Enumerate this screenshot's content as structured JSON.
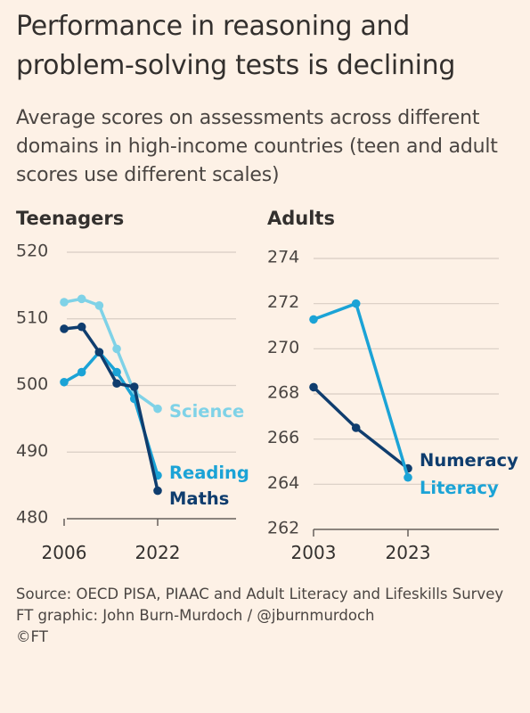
{
  "title": "Performance in reasoning and problem-solving tests is declining",
  "subtitle": "Average scores on assessments across different domains in high-income countries (teen and adult scores use different scales)",
  "source": "Source: OECD PISA, PIAAC and Adult Literacy and Lifeskills Survey",
  "credit": "FT graphic: John Burn-Murdoch / @jburnmurdoch",
  "copyright": "©FT",
  "colors": {
    "background": "#fdf1e6",
    "science": "#7fd2e7",
    "reading": "#1ba3d6",
    "maths": "#0f3d6e",
    "numeracy": "#0f3d6e",
    "literacy": "#1ba3d6",
    "grid": "#d8cdc4"
  },
  "chart_data": [
    {
      "type": "line",
      "title": "Teenagers",
      "ylim": [
        480,
        520
      ],
      "yticks": [
        "520",
        "510",
        "500",
        "490",
        "480"
      ],
      "xlim": [
        2006,
        2022
      ],
      "xticks": [
        "2006",
        "2022"
      ],
      "grid": true,
      "series": [
        {
          "name": "Science",
          "x": [
            2006,
            2009,
            2012,
            2015,
            2018,
            2022
          ],
          "values": [
            512.5,
            513,
            512,
            505.5,
            499,
            496.5
          ]
        },
        {
          "name": "Reading",
          "x": [
            2006,
            2009,
            2012,
            2015,
            2018,
            2022
          ],
          "values": [
            500.5,
            502,
            505,
            502,
            498,
            486.5
          ]
        },
        {
          "name": "Maths",
          "x": [
            2006,
            2009,
            2012,
            2015,
            2018,
            2022
          ],
          "values": [
            508.5,
            508.8,
            505,
            500.3,
            499.8,
            484.2
          ]
        }
      ]
    },
    {
      "type": "line",
      "title": "Adults",
      "ylim": [
        262,
        274
      ],
      "yticks": [
        "274",
        "272",
        "270",
        "268",
        "266",
        "264",
        "262"
      ],
      "xlim": [
        2003,
        2023
      ],
      "xticks": [
        "2003",
        "2023"
      ],
      "grid": true,
      "series": [
        {
          "name": "Numeracy",
          "x": [
            2003,
            2012,
            2023
          ],
          "values": [
            268.3,
            266.5,
            264.7
          ]
        },
        {
          "name": "Literacy",
          "x": [
            2003,
            2012,
            2023
          ],
          "values": [
            271.3,
            272,
            264.3
          ]
        }
      ]
    }
  ]
}
